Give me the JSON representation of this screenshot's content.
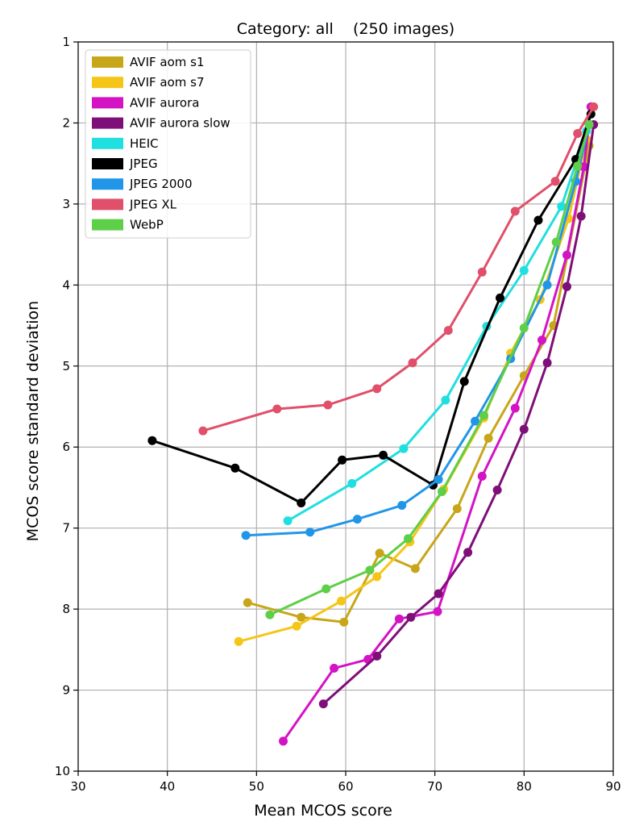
{
  "chart_data": {
    "type": "line",
    "title": "Category: all    (250 images)",
    "xlabel": "Mean MCOS score",
    "ylabel": "MCOS score standard deviation",
    "xlim": [
      30,
      90
    ],
    "ylim": [
      1,
      10
    ],
    "y_inverted": true,
    "xticks": [
      30,
      40,
      50,
      60,
      70,
      80,
      90
    ],
    "yticks": [
      1,
      2,
      3,
      4,
      5,
      6,
      7,
      8,
      9,
      10
    ],
    "grid": true,
    "legend_position": "top-left",
    "series": [
      {
        "name": "AVIF aom s1",
        "color": "#c8a61a",
        "points": [
          [
            49.0,
            7.92
          ],
          [
            55.0,
            8.1
          ],
          [
            59.8,
            8.16
          ],
          [
            63.8,
            7.31
          ],
          [
            67.8,
            7.5
          ],
          [
            72.5,
            6.76
          ],
          [
            76.0,
            5.89
          ],
          [
            80.0,
            5.12
          ],
          [
            83.3,
            4.5
          ],
          [
            87.3,
            2.28
          ]
        ]
      },
      {
        "name": "AVIF aom s7",
        "color": "#f5c518",
        "points": [
          [
            48.0,
            8.4
          ],
          [
            54.5,
            8.21
          ],
          [
            59.5,
            7.9
          ],
          [
            63.5,
            7.6
          ],
          [
            67.2,
            7.17
          ],
          [
            71.0,
            6.52
          ],
          [
            75.5,
            5.64
          ],
          [
            78.5,
            4.84
          ],
          [
            81.8,
            4.18
          ],
          [
            85.0,
            3.18
          ],
          [
            87.0,
            2.2
          ]
        ]
      },
      {
        "name": "AVIF aurora",
        "color": "#d413c4",
        "points": [
          [
            53.0,
            9.63
          ],
          [
            58.7,
            8.73
          ],
          [
            62.5,
            8.62
          ],
          [
            66.0,
            8.12
          ],
          [
            70.3,
            8.03
          ],
          [
            75.3,
            6.36
          ],
          [
            79.0,
            5.52
          ],
          [
            82.0,
            4.68
          ],
          [
            84.8,
            3.63
          ],
          [
            86.7,
            2.54
          ],
          [
            87.5,
            1.8
          ]
        ]
      },
      {
        "name": "AVIF aurora slow",
        "color": "#7e0f78",
        "points": [
          [
            57.5,
            9.17
          ],
          [
            63.5,
            8.58
          ],
          [
            67.3,
            8.1
          ],
          [
            70.4,
            7.81
          ],
          [
            73.7,
            7.3
          ],
          [
            77.0,
            6.53
          ],
          [
            80.0,
            5.78
          ],
          [
            82.6,
            4.96
          ],
          [
            84.8,
            4.02
          ],
          [
            86.4,
            3.15
          ],
          [
            87.8,
            2.02
          ]
        ]
      },
      {
        "name": "HEIC",
        "color": "#20dfe0",
        "points": [
          [
            53.5,
            6.91
          ],
          [
            60.7,
            6.45
          ],
          [
            66.5,
            6.02
          ],
          [
            71.2,
            5.42
          ],
          [
            75.8,
            4.51
          ],
          [
            80.0,
            3.82
          ],
          [
            84.2,
            3.03
          ],
          [
            87.0,
            2.1
          ]
        ]
      },
      {
        "name": "JPEG",
        "color": "#000000",
        "points": [
          [
            38.3,
            5.92
          ],
          [
            47.6,
            6.26
          ],
          [
            55.0,
            6.69
          ],
          [
            59.6,
            6.16
          ],
          [
            64.2,
            6.1
          ],
          [
            69.8,
            6.47
          ],
          [
            73.3,
            5.19
          ],
          [
            77.3,
            4.16
          ],
          [
            81.6,
            3.2
          ],
          [
            85.8,
            2.45
          ],
          [
            87.5,
            1.89
          ]
        ]
      },
      {
        "name": "JPEG 2000",
        "color": "#2196e8",
        "points": [
          [
            48.8,
            7.09
          ],
          [
            56.0,
            7.05
          ],
          [
            61.3,
            6.89
          ],
          [
            66.3,
            6.72
          ],
          [
            70.4,
            6.4
          ],
          [
            74.5,
            5.68
          ],
          [
            78.5,
            4.91
          ],
          [
            82.6,
            4.0
          ],
          [
            85.8,
            2.72
          ],
          [
            87.3,
            2.02
          ]
        ]
      },
      {
        "name": "JPEG XL",
        "color": "#e0506a",
        "points": [
          [
            44.0,
            5.8
          ],
          [
            52.3,
            5.53
          ],
          [
            58.0,
            5.48
          ],
          [
            63.5,
            5.28
          ],
          [
            67.5,
            4.96
          ],
          [
            71.5,
            4.56
          ],
          [
            75.3,
            3.84
          ],
          [
            79.0,
            3.09
          ],
          [
            83.5,
            2.72
          ],
          [
            86.0,
            2.13
          ],
          [
            87.8,
            1.8
          ]
        ]
      },
      {
        "name": "WebP",
        "color": "#5ecf48",
        "points": [
          [
            51.5,
            8.07
          ],
          [
            57.8,
            7.75
          ],
          [
            62.7,
            7.52
          ],
          [
            67.0,
            7.13
          ],
          [
            70.8,
            6.55
          ],
          [
            75.5,
            5.61
          ],
          [
            80.0,
            4.53
          ],
          [
            83.6,
            3.47
          ],
          [
            86.0,
            2.53
          ],
          [
            87.3,
            2.02
          ]
        ]
      }
    ]
  }
}
